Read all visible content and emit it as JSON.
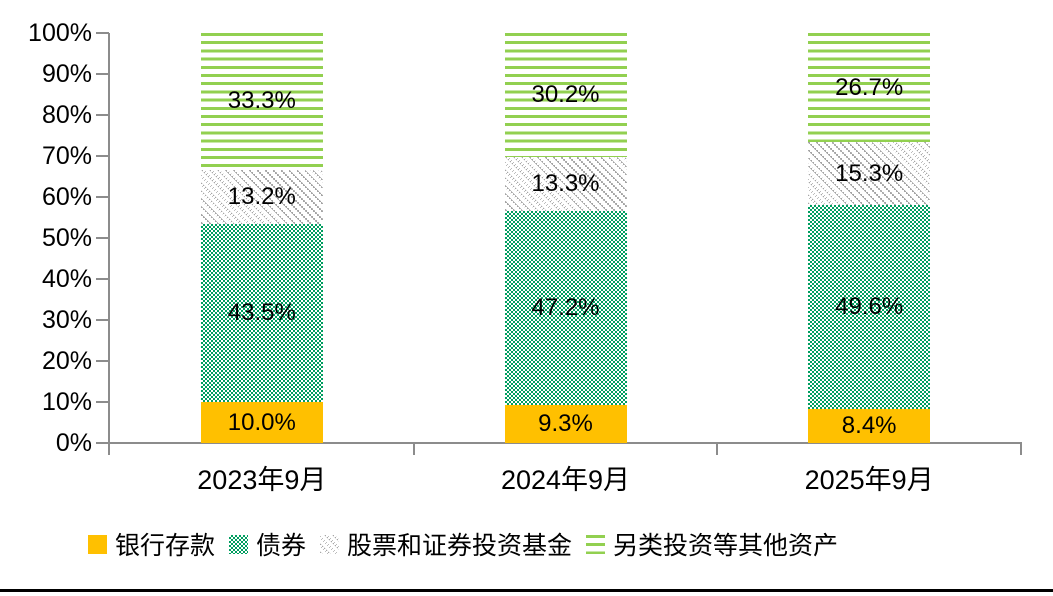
{
  "chart_data": {
    "type": "bar",
    "stacked": true,
    "orientation": "vertical",
    "grid": false,
    "legend_position": "bottom",
    "categories": [
      "2023年9月",
      "2024年9月",
      "2025年9月"
    ],
    "series": [
      {
        "name": "银行存款",
        "values": [
          10.0,
          9.3,
          8.4
        ],
        "labels": [
          "10.0%",
          "9.3%",
          "8.4%"
        ],
        "color": "#FFC000",
        "pattern": "solid"
      },
      {
        "name": "债券",
        "values": [
          43.5,
          47.2,
          49.6
        ],
        "labels": [
          "43.5%",
          "47.2%",
          "49.6%"
        ],
        "color": "#009E60",
        "pattern": "checker"
      },
      {
        "name": "股票和证券投资基金",
        "values": [
          13.2,
          13.3,
          15.3
        ],
        "labels": [
          "13.2%",
          "13.3%",
          "15.3%"
        ],
        "color": "#A6A6A6",
        "pattern": "diagonal"
      },
      {
        "name": "另类投资等其他资产",
        "values": [
          33.3,
          30.2,
          26.7
        ],
        "labels": [
          "33.3%",
          "30.2%",
          "26.7%"
        ],
        "color": "#92D050",
        "pattern": "hlines"
      }
    ],
    "y_axis": {
      "min": 0,
      "max": 100,
      "tick_labels": [
        "100%",
        "90%",
        "80%",
        "70%",
        "60%",
        "50%",
        "40%",
        "30%",
        "20%",
        "10%",
        "0%"
      ]
    },
    "colors": {
      "axis": "#8c8c8c",
      "label_text": "#000000",
      "bottom_rule": "#000000",
      "pattern_background": "#ffffff"
    }
  }
}
